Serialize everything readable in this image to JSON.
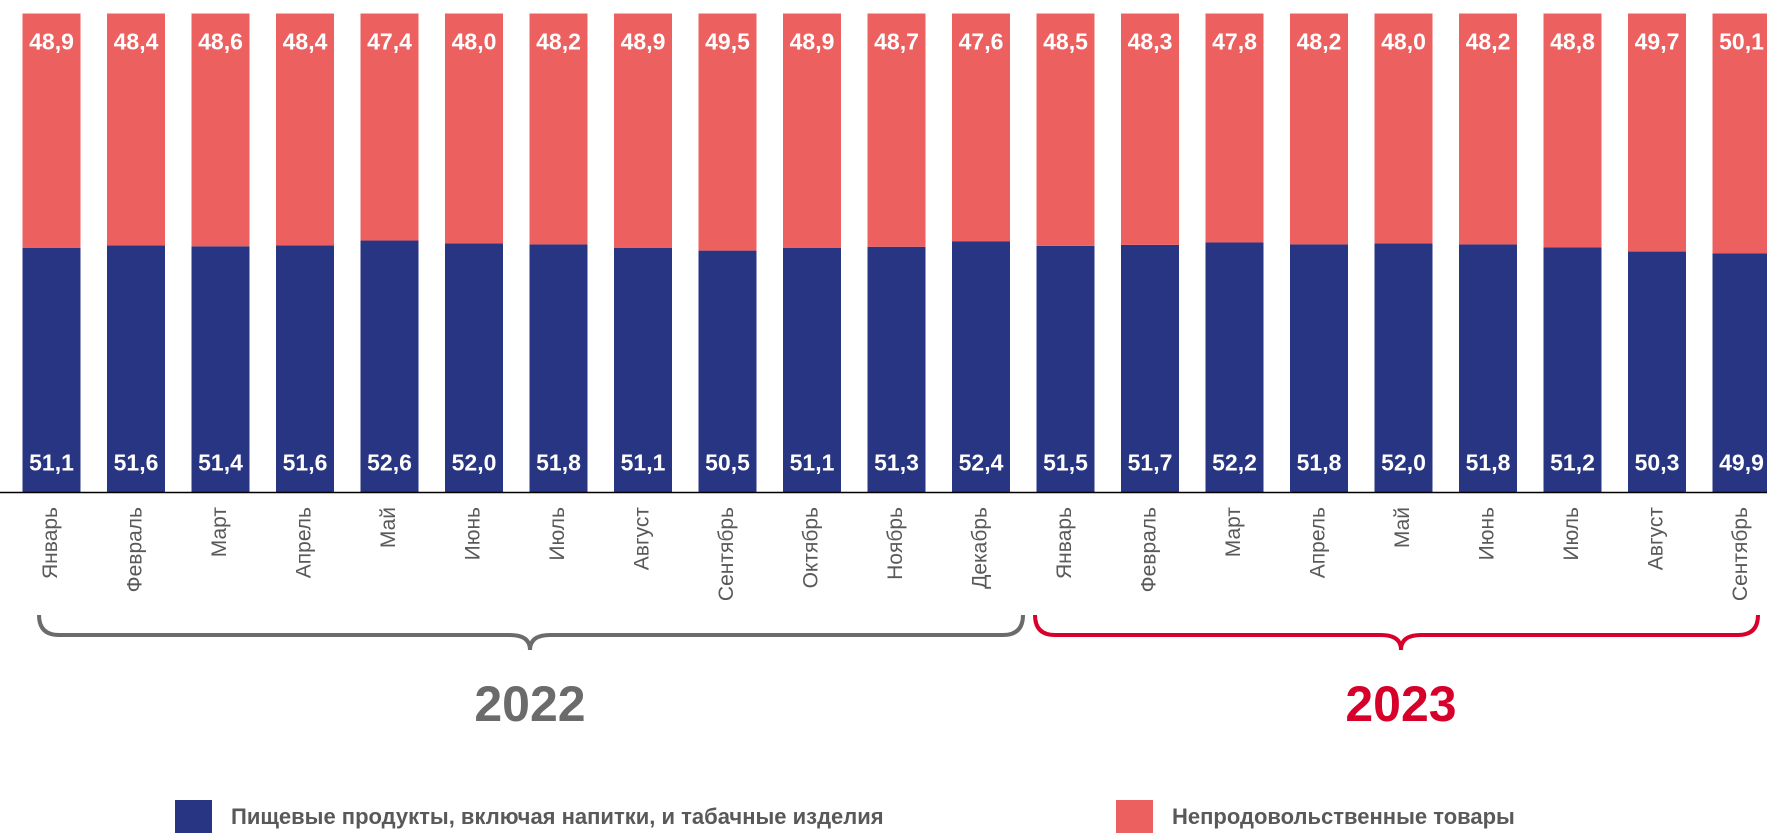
{
  "chart_data": {
    "type": "bar",
    "stacked": true,
    "categories": [
      "Январь",
      "Февраль",
      "Март",
      "Апрель",
      "Май",
      "Июнь",
      "Июль",
      "Август",
      "Сентябрь",
      "Октябрь",
      "Ноябрь",
      "Декабрь",
      "Январь",
      "Февраль",
      "Март",
      "Апрель",
      "Май",
      "Июнь",
      "Июль",
      "Август",
      "Сентябрь"
    ],
    "series": [
      {
        "name": "Пищевые продукты, включая напитки, и табачные изделия",
        "color": "#283583",
        "values": [
          51.1,
          51.6,
          51.4,
          51.6,
          52.6,
          52.0,
          51.8,
          51.1,
          50.5,
          51.1,
          51.3,
          52.4,
          51.5,
          51.7,
          52.2,
          51.8,
          52.0,
          51.8,
          51.2,
          50.3,
          49.9
        ],
        "value_labels": [
          "51,1",
          "51,6",
          "51,4",
          "51,6",
          "52,6",
          "52,0",
          "51,8",
          "51,1",
          "50,5",
          "51,1",
          "51,3",
          "52,4",
          "51,5",
          "51,7",
          "52,2",
          "51,8",
          "52,0",
          "51,8",
          "51,2",
          "50,3",
          "49,9"
        ]
      },
      {
        "name": "Непродовольственные товары",
        "color": "#ec6060",
        "values": [
          48.9,
          48.4,
          48.6,
          48.4,
          47.4,
          48.0,
          48.2,
          48.9,
          49.5,
          48.9,
          48.7,
          47.6,
          48.5,
          48.3,
          47.8,
          48.2,
          48.0,
          48.2,
          48.8,
          49.7,
          50.1
        ],
        "value_labels": [
          "48,9",
          "48,4",
          "48,6",
          "48,4",
          "47,4",
          "48,0",
          "48,2",
          "48,9",
          "49,5",
          "48,9",
          "48,7",
          "47,6",
          "48,5",
          "48,3",
          "47,8",
          "48,2",
          "48,0",
          "48,2",
          "48,8",
          "49,7",
          "50,1"
        ]
      }
    ],
    "annotations": [
      "2022",
      "2023"
    ],
    "ylim": [
      0,
      100
    ]
  }
}
